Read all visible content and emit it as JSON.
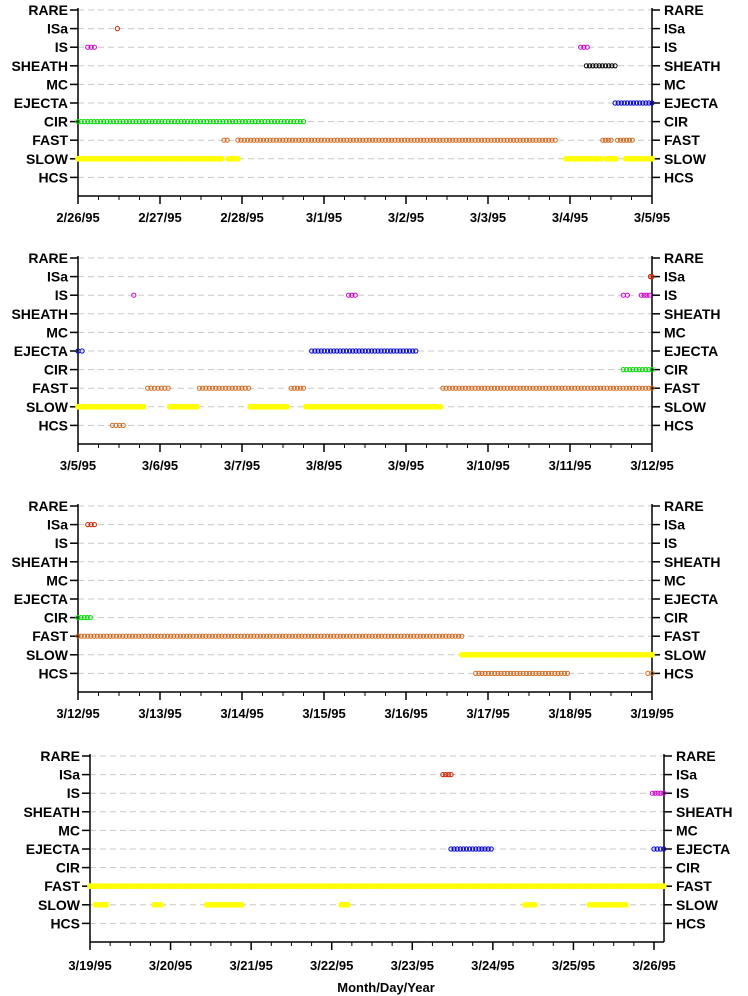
{
  "chart_data": {
    "type": "scatter",
    "x_label": "Month/Day/Year",
    "categories": [
      "RARE",
      "ISa",
      "IS",
      "SHEATH",
      "MC",
      "EJECTA",
      "CIR",
      "FAST",
      "SLOW",
      "HCS"
    ],
    "colors": {
      "RARE": "#000000",
      "ISa": "#cc2200",
      "IS": "#cc00cc",
      "SHEATH": "#000000",
      "MC": "#000000",
      "EJECTA": "#0000cc",
      "CIR": "#00dd00",
      "FAST": "#d2691e",
      "SLOW": "#ffff00",
      "HCS": "#d2691e",
      "grid": "#c8c8c8"
    },
    "panels": [
      {
        "x_range": [
          0,
          7
        ],
        "tick_labels": [
          "2/26/95",
          "2/27/95",
          "2/28/95",
          "3/1/95",
          "3/2/95",
          "3/3/95",
          "3/4/95",
          "3/5/95"
        ],
        "segments": [
          {
            "cat": "ISa",
            "start": 0.48,
            "end": 0.48
          },
          {
            "cat": "IS",
            "start": 0.12,
            "end": 0.2
          },
          {
            "cat": "IS",
            "start": 6.13,
            "end": 6.21
          },
          {
            "cat": "SHEATH",
            "start": 6.2,
            "end": 6.55
          },
          {
            "cat": "EJECTA",
            "start": 6.55,
            "end": 7.0
          },
          {
            "cat": "CIR",
            "start": 0.0,
            "end": 2.75
          },
          {
            "cat": "FAST",
            "start": 1.78,
            "end": 1.82
          },
          {
            "cat": "FAST",
            "start": 1.95,
            "end": 5.82
          },
          {
            "cat": "FAST",
            "start": 6.4,
            "end": 6.5
          },
          {
            "cat": "FAST",
            "start": 6.58,
            "end": 6.76
          },
          {
            "cat": "SLOW",
            "start": 0.0,
            "end": 1.75
          },
          {
            "cat": "SLOW",
            "start": 1.83,
            "end": 1.95
          },
          {
            "cat": "SLOW",
            "start": 5.95,
            "end": 6.38
          },
          {
            "cat": "SLOW",
            "start": 6.45,
            "end": 6.56
          },
          {
            "cat": "SLOW",
            "start": 6.68,
            "end": 7.0
          }
        ]
      },
      {
        "x_range": [
          0,
          7
        ],
        "tick_labels": [
          "3/5/95",
          "3/6/95",
          "3/7/95",
          "3/8/95",
          "3/9/95",
          "3/10/95",
          "3/11/95",
          "3/12/95"
        ],
        "segments": [
          {
            "cat": "ISa",
            "start": 6.98,
            "end": 7.0
          },
          {
            "cat": "IS",
            "start": 0.68,
            "end": 0.68
          },
          {
            "cat": "IS",
            "start": 3.3,
            "end": 3.38
          },
          {
            "cat": "IS",
            "start": 6.65,
            "end": 6.7
          },
          {
            "cat": "IS",
            "start": 6.87,
            "end": 6.97
          },
          {
            "cat": "EJECTA",
            "start": 0.0,
            "end": 0.05
          },
          {
            "cat": "EJECTA",
            "start": 2.85,
            "end": 4.12
          },
          {
            "cat": "CIR",
            "start": 6.65,
            "end": 7.0
          },
          {
            "cat": "FAST",
            "start": 0.85,
            "end": 1.1
          },
          {
            "cat": "FAST",
            "start": 1.48,
            "end": 2.08
          },
          {
            "cat": "FAST",
            "start": 2.6,
            "end": 2.75
          },
          {
            "cat": "FAST",
            "start": 4.45,
            "end": 7.0
          },
          {
            "cat": "SLOW",
            "start": 0.0,
            "end": 0.8
          },
          {
            "cat": "SLOW",
            "start": 1.12,
            "end": 1.45
          },
          {
            "cat": "SLOW",
            "start": 2.1,
            "end": 2.55
          },
          {
            "cat": "SLOW",
            "start": 2.78,
            "end": 4.42
          },
          {
            "cat": "HCS",
            "start": 0.42,
            "end": 0.55
          }
        ]
      },
      {
        "x_range": [
          0,
          7
        ],
        "tick_labels": [
          "3/12/95",
          "3/13/95",
          "3/14/95",
          "3/15/95",
          "3/16/95",
          "3/17/95",
          "3/18/95",
          "3/19/95"
        ],
        "segments": [
          {
            "cat": "ISa",
            "start": 0.12,
            "end": 0.2
          },
          {
            "cat": "CIR",
            "start": 0.0,
            "end": 0.15
          },
          {
            "cat": "FAST",
            "start": 0.0,
            "end": 4.68
          },
          {
            "cat": "SLOW",
            "start": 4.68,
            "end": 7.0
          },
          {
            "cat": "HCS",
            "start": 4.85,
            "end": 5.97
          },
          {
            "cat": "HCS",
            "start": 6.95,
            "end": 7.0
          }
        ]
      },
      {
        "x_range": [
          0,
          7
        ],
        "tick_labels": [
          "3/19/95",
          "3/20/95",
          "3/21/95",
          "3/22/95",
          "3/23/95",
          "3/24/95",
          "3/25/95",
          "3/26/95"
        ],
        "segments": [
          {
            "cat": "ISa",
            "start": 4.38,
            "end": 4.48
          },
          {
            "cat": "IS",
            "start": 6.98,
            "end": 7.12
          },
          {
            "cat": "EJECTA",
            "start": 4.48,
            "end": 4.98
          },
          {
            "cat": "EJECTA",
            "start": 7.0,
            "end": 7.12
          },
          {
            "cat": "FAST",
            "start": 0.0,
            "end": 7.12
          },
          {
            "cat": "SLOW",
            "start": 0.07,
            "end": 0.2
          },
          {
            "cat": "SLOW",
            "start": 0.8,
            "end": 0.88
          },
          {
            "cat": "SLOW",
            "start": 1.45,
            "end": 1.88
          },
          {
            "cat": "SLOW",
            "start": 3.12,
            "end": 3.2
          },
          {
            "cat": "SLOW",
            "start": 5.4,
            "end": 5.52
          },
          {
            "cat": "SLOW",
            "start": 6.2,
            "end": 6.65
          }
        ]
      }
    ]
  }
}
